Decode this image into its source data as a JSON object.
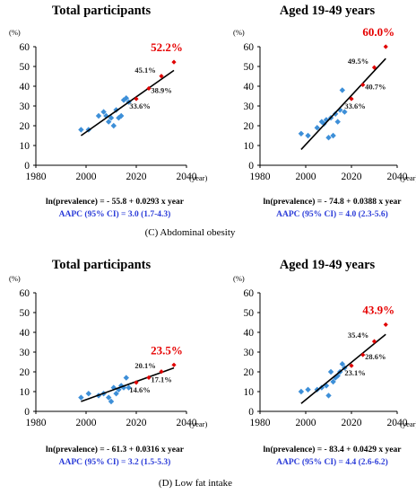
{
  "sections": [
    {
      "caption": "(C) Abdominal obesity",
      "panels": [
        {
          "title": "Total participants",
          "ylabel_unit": "(%)",
          "xlabel_unit": "(year)",
          "xlim": [
            1980,
            2040
          ],
          "ylim": [
            0,
            60
          ],
          "xticks": [
            "1980",
            "2000",
            "2020",
            "2040"
          ],
          "yticks": [
            "0",
            "10",
            "20",
            "30",
            "40",
            "50",
            "60"
          ],
          "observed": [
            [
              1998,
              18
            ],
            [
              2001,
              18
            ],
            [
              2005,
              25
            ],
            [
              2007,
              27
            ],
            [
              2008,
              25
            ],
            [
              2009,
              22
            ],
            [
              2010,
              24
            ],
            [
              2011,
              20
            ],
            [
              2012,
              28
            ],
            [
              2013,
              24
            ],
            [
              2014,
              25
            ],
            [
              2015,
              33
            ],
            [
              2016,
              34
            ],
            [
              2017,
              32
            ]
          ],
          "trend": [
            [
              1998,
              15
            ],
            [
              2035,
              48
            ]
          ],
          "projected": [
            [
              2020,
              33.6
            ],
            [
              2025,
              38.9
            ],
            [
              2030,
              45.1
            ],
            [
              2035,
              52.2
            ]
          ],
          "labels": [
            {
              "text": "52.2%",
              "x": 2035,
              "y": 52.2,
              "big": true
            },
            {
              "text": "45.1%",
              "x": 2030,
              "y": 45.1,
              "big": false
            },
            {
              "text": "38.9%",
              "x": 2025,
              "y": 38.9,
              "big": false
            },
            {
              "text": "33.6%",
              "x": 2020,
              "y": 33.6,
              "big": false
            }
          ],
          "equation": "ln(prevalence) = - 55.8 + 0.0293  x year",
          "aapc": "AAPC (95% CI) =  3.0 (1.7-4.3)"
        },
        {
          "title": "Aged 19-49 years",
          "ylabel_unit": "(%)",
          "xlabel_unit": "(year)",
          "xlim": [
            1980,
            2040
          ],
          "ylim": [
            0,
            60
          ],
          "xticks": [
            "1980",
            "2000",
            "2020",
            "2040"
          ],
          "yticks": [
            "0",
            "10",
            "20",
            "30",
            "40",
            "50",
            "60"
          ],
          "observed": [
            [
              1998,
              16
            ],
            [
              2001,
              15
            ],
            [
              2005,
              19
            ],
            [
              2007,
              22
            ],
            [
              2008,
              21
            ],
            [
              2009,
              23
            ],
            [
              2010,
              14
            ],
            [
              2011,
              24
            ],
            [
              2012,
              15
            ],
            [
              2013,
              26
            ],
            [
              2014,
              22
            ],
            [
              2015,
              28
            ],
            [
              2016,
              38
            ],
            [
              2017,
              27
            ]
          ],
          "trend": [
            [
              1998,
              8
            ],
            [
              2035,
              54
            ]
          ],
          "projected": [
            [
              2020,
              33.6
            ],
            [
              2025,
              40.7
            ],
            [
              2030,
              49.5
            ],
            [
              2035,
              60.0
            ]
          ],
          "labels": [
            {
              "text": "60.0%",
              "x": 2035,
              "y": 60.0,
              "big": true
            },
            {
              "text": "49.5%",
              "x": 2030,
              "y": 49.5,
              "big": false
            },
            {
              "text": "40.7%",
              "x": 2025,
              "y": 40.7,
              "big": false
            },
            {
              "text": "33.6%",
              "x": 2020,
              "y": 33.6,
              "big": false
            }
          ],
          "equation": "ln(prevalence) = - 74.8 + 0.0388  x year",
          "aapc": "AAPC (95% CI) = 4.0 (2.3-5.6)"
        }
      ]
    },
    {
      "caption": "(D) Low fat intake",
      "panels": [
        {
          "title": "Total participants",
          "ylabel_unit": "(%)",
          "xlabel_unit": "(year)",
          "xlim": [
            1980,
            2040
          ],
          "ylim": [
            0,
            60
          ],
          "xticks": [
            "1980",
            "2000",
            "2020",
            "2040"
          ],
          "yticks": [
            "0",
            "10",
            "20",
            "30",
            "40",
            "50",
            "60"
          ],
          "observed": [
            [
              1998,
              7
            ],
            [
              2001,
              9
            ],
            [
              2005,
              8
            ],
            [
              2007,
              9
            ],
            [
              2009,
              7
            ],
            [
              2010,
              5
            ],
            [
              2011,
              12
            ],
            [
              2012,
              9
            ],
            [
              2013,
              11
            ],
            [
              2014,
              13
            ],
            [
              2015,
              12
            ],
            [
              2016,
              17
            ],
            [
              2017,
              12
            ]
          ],
          "trend": [
            [
              1998,
              5
            ],
            [
              2035,
              22
            ]
          ],
          "projected": [
            [
              2020,
              14.6
            ],
            [
              2025,
              17.1
            ],
            [
              2030,
              20.1
            ],
            [
              2035,
              23.5
            ]
          ],
          "labels": [
            {
              "text": "23.5%",
              "x": 2035,
              "y": 23.5,
              "big": true
            },
            {
              "text": "20.1%",
              "x": 2030,
              "y": 20.1,
              "big": false
            },
            {
              "text": "17.1%",
              "x": 2025,
              "y": 17.1,
              "big": false
            },
            {
              "text": "14.6%",
              "x": 2020,
              "y": 14.6,
              "big": false
            }
          ],
          "equation": "ln(prevalence) = - 61.3 + 0.0316  x year",
          "aapc": "AAPC (95% CI) = 3.2 (1.5-5.3)"
        },
        {
          "title": "Aged 19-49 years",
          "ylabel_unit": "(%)",
          "xlabel_unit": "(year)",
          "xlim": [
            1980,
            2040
          ],
          "ylim": [
            0,
            60
          ],
          "xticks": [
            "1980",
            "2000",
            "2020",
            "2040"
          ],
          "yticks": [
            "0",
            "10",
            "20",
            "30",
            "40",
            "50",
            "60"
          ],
          "observed": [
            [
              1998,
              10
            ],
            [
              2001,
              11
            ],
            [
              2005,
              11
            ],
            [
              2007,
              12
            ],
            [
              2009,
              13
            ],
            [
              2010,
              8
            ],
            [
              2011,
              20
            ],
            [
              2012,
              15
            ],
            [
              2013,
              17
            ],
            [
              2014,
              18
            ],
            [
              2015,
              20
            ],
            [
              2016,
              24
            ],
            [
              2017,
              22
            ]
          ],
          "trend": [
            [
              1998,
              4
            ],
            [
              2035,
              39
            ]
          ],
          "projected": [
            [
              2020,
              23.1
            ],
            [
              2025,
              28.6
            ],
            [
              2030,
              35.4
            ],
            [
              2035,
              43.9
            ]
          ],
          "labels": [
            {
              "text": "43.9%",
              "x": 2035,
              "y": 43.9,
              "big": true
            },
            {
              "text": "35.4%",
              "x": 2030,
              "y": 35.4,
              "big": false
            },
            {
              "text": "28.6%",
              "x": 2025,
              "y": 28.6,
              "big": false
            },
            {
              "text": "23.1%",
              "x": 2020,
              "y": 23.1,
              "big": false
            }
          ],
          "equation": "ln(prevalence) = - 83.4 + 0.0429  x year",
          "aapc": "AAPC (95% CI) = 4.4 (2.6-6.2)"
        }
      ]
    }
  ],
  "colors": {
    "observed": "#3d8fd8",
    "projected": "#e00000",
    "trend": "#000000",
    "highlight": "#e60000",
    "aapc": "#2a3bd8"
  },
  "chart_data": [
    {
      "type": "scatter",
      "title": "Total participants",
      "xlabel": "(year)",
      "ylabel": "(%)",
      "xlim": [
        1980,
        2040
      ],
      "ylim": [
        0,
        60
      ],
      "series": [
        {
          "values": [
            [
              1998,
              18
            ],
            [
              2001,
              18
            ],
            [
              2005,
              25
            ],
            [
              2007,
              27
            ],
            [
              2008,
              25
            ],
            [
              2009,
              22
            ],
            [
              2010,
              24
            ],
            [
              2011,
              20
            ],
            [
              2012,
              28
            ],
            [
              2013,
              24
            ],
            [
              2014,
              25
            ],
            [
              2015,
              33
            ],
            [
              2016,
              34
            ],
            [
              2017,
              32
            ]
          ]
        },
        {
          "values": [
            [
              2020,
              33.6
            ],
            [
              2025,
              38.9
            ],
            [
              2030,
              45.1
            ],
            [
              2035,
              52.2
            ]
          ]
        }
      ],
      "annotations": [
        "ln(prevalence) = - 55.8 + 0.0293  x year",
        "AAPC (95% CI) =  3.0 (1.7-4.3)"
      ]
    },
    {
      "type": "scatter",
      "title": "Aged 19-49 years",
      "xlabel": "(year)",
      "ylabel": "(%)",
      "xlim": [
        1980,
        2040
      ],
      "ylim": [
        0,
        60
      ],
      "series": [
        {
          "values": [
            [
              1998,
              16
            ],
            [
              2001,
              15
            ],
            [
              2005,
              19
            ],
            [
              2007,
              22
            ],
            [
              2008,
              21
            ],
            [
              2009,
              23
            ],
            [
              2010,
              14
            ],
            [
              2011,
              24
            ],
            [
              2012,
              15
            ],
            [
              2013,
              26
            ],
            [
              2014,
              22
            ],
            [
              2015,
              28
            ],
            [
              2016,
              38
            ],
            [
              2017,
              27
            ]
          ]
        },
        {
          "values": [
            [
              2020,
              33.6
            ],
            [
              2025,
              40.7
            ],
            [
              2030,
              49.5
            ],
            [
              2035,
              60.0
            ]
          ]
        }
      ],
      "annotations": [
        "ln(prevalence) = - 74.8 + 0.0388  x year",
        "AAPC (95% CI) = 4.0 (2.3-5.6)"
      ]
    },
    {
      "type": "scatter",
      "title": "Total participants",
      "xlabel": "(year)",
      "ylabel": "(%)",
      "xlim": [
        1980,
        2040
      ],
      "ylim": [
        0,
        60
      ],
      "series": [
        {
          "values": [
            [
              1998,
              7
            ],
            [
              2001,
              9
            ],
            [
              2005,
              8
            ],
            [
              2007,
              9
            ],
            [
              2009,
              7
            ],
            [
              2010,
              5
            ],
            [
              2011,
              12
            ],
            [
              2012,
              9
            ],
            [
              2013,
              11
            ],
            [
              2014,
              13
            ],
            [
              2015,
              12
            ],
            [
              2016,
              17
            ],
            [
              2017,
              12
            ]
          ]
        },
        {
          "values": [
            [
              2020,
              14.6
            ],
            [
              2025,
              17.1
            ],
            [
              2030,
              20.1
            ],
            [
              2035,
              23.5
            ]
          ]
        }
      ],
      "annotations": [
        "ln(prevalence) = - 61.3 + 0.0316  x year",
        "AAPC (95% CI) = 3.2 (1.5-5.3)"
      ]
    },
    {
      "type": "scatter",
      "title": "Aged 19-49 years",
      "xlabel": "(year)",
      "ylabel": "(%)",
      "xlim": [
        1980,
        2040
      ],
      "ylim": [
        0,
        60
      ],
      "series": [
        {
          "values": [
            [
              1998,
              10
            ],
            [
              2001,
              11
            ],
            [
              2005,
              11
            ],
            [
              2007,
              12
            ],
            [
              2009,
              13
            ],
            [
              2010,
              8
            ],
            [
              2011,
              20
            ],
            [
              2012,
              15
            ],
            [
              2013,
              17
            ],
            [
              2014,
              18
            ],
            [
              2015,
              20
            ],
            [
              2016,
              24
            ],
            [
              2017,
              22
            ]
          ]
        },
        {
          "values": [
            [
              2020,
              23.1
            ],
            [
              2025,
              28.6
            ],
            [
              2030,
              35.4
            ],
            [
              2035,
              43.9
            ]
          ]
        }
      ],
      "annotations": [
        "ln(prevalence) = - 83.4 + 0.0429  x year",
        "AAPC (95% CI) = 4.4 (2.6-6.2)"
      ]
    }
  ]
}
